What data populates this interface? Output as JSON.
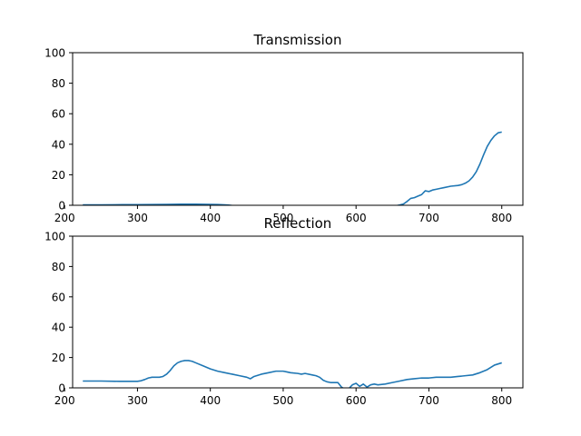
{
  "chart_data": [
    {
      "type": "line",
      "title": "Transmission",
      "xlabel": "",
      "ylabel": "",
      "xlim": [
        211,
        829
      ],
      "ylim": [
        0,
        100
      ],
      "xticks": [
        200,
        300,
        400,
        500,
        600,
        700,
        800
      ],
      "yticks": [
        0,
        20,
        40,
        60,
        80,
        100
      ],
      "grid": false,
      "series": [
        {
          "color": "#1f77b4",
          "x": [
            225,
            250,
            280,
            300,
            320,
            340,
            360,
            380,
            400,
            410,
            420,
            425,
            430,
            440,
            450,
            500,
            550,
            600,
            640,
            655,
            660,
            665,
            670,
            675,
            680,
            685,
            690,
            695,
            700,
            705,
            710,
            715,
            720,
            730,
            740,
            745,
            750,
            755,
            760,
            765,
            770,
            775,
            780,
            785,
            790,
            795,
            800
          ],
          "y": [
            0.3,
            0.3,
            0.4,
            0.4,
            0.5,
            0.6,
            0.7,
            0.7,
            0.6,
            0.5,
            0.3,
            0.1,
            -0.2,
            -0.5,
            -0.5,
            -0.5,
            -0.5,
            -0.5,
            -0.5,
            -0.3,
            0.2,
            0.8,
            2.5,
            4.5,
            5.0,
            6.0,
            7.0,
            9.5,
            9.0,
            10.0,
            10.5,
            11.0,
            11.5,
            12.5,
            13.0,
            13.5,
            14.5,
            16.0,
            18.5,
            22.0,
            27.0,
            33.0,
            38.5,
            42.5,
            45.5,
            47.5,
            48.0
          ]
        }
      ]
    },
    {
      "type": "line",
      "title": "Reflection",
      "xlabel": "",
      "ylabel": "",
      "xlim": [
        211,
        829
      ],
      "ylim": [
        0,
        100
      ],
      "xticks": [
        200,
        300,
        400,
        500,
        600,
        700,
        800
      ],
      "yticks": [
        0,
        20,
        40,
        60,
        80,
        100
      ],
      "grid": false,
      "series": [
        {
          "color": "#1f77b4",
          "x": [
            225,
            250,
            275,
            300,
            305,
            310,
            315,
            320,
            325,
            330,
            335,
            340,
            345,
            350,
            355,
            360,
            365,
            370,
            375,
            380,
            390,
            400,
            410,
            420,
            430,
            440,
            450,
            455,
            460,
            470,
            480,
            490,
            500,
            505,
            510,
            520,
            525,
            530,
            540,
            545,
            550,
            555,
            560,
            565,
            570,
            575,
            580,
            585,
            590,
            595,
            600,
            605,
            610,
            615,
            620,
            625,
            630,
            640,
            650,
            660,
            670,
            680,
            690,
            700,
            710,
            720,
            730,
            740,
            750,
            760,
            770,
            780,
            790,
            800
          ],
          "y": [
            4.5,
            4.5,
            4.3,
            4.3,
            4.7,
            5.5,
            6.5,
            7.0,
            7.0,
            7.0,
            7.5,
            9.0,
            11.5,
            14.5,
            16.5,
            17.5,
            18.0,
            18.0,
            17.5,
            16.5,
            14.5,
            12.5,
            11.0,
            10.0,
            9.0,
            8.0,
            7.0,
            6.0,
            7.5,
            9.0,
            10.0,
            11.0,
            11.0,
            10.5,
            10.0,
            9.5,
            9.0,
            9.5,
            8.5,
            8.0,
            7.0,
            5.0,
            4.0,
            3.5,
            3.5,
            3.5,
            0.5,
            -1.0,
            -0.5,
            2.0,
            3.0,
            1.0,
            2.5,
            0.5,
            2.0,
            2.5,
            2.0,
            2.5,
            3.5,
            4.5,
            5.5,
            6.0,
            6.5,
            6.5,
            7.0,
            7.0,
            7.0,
            7.5,
            8.0,
            8.5,
            10.0,
            12.0,
            15.0,
            16.5
          ]
        }
      ]
    }
  ]
}
